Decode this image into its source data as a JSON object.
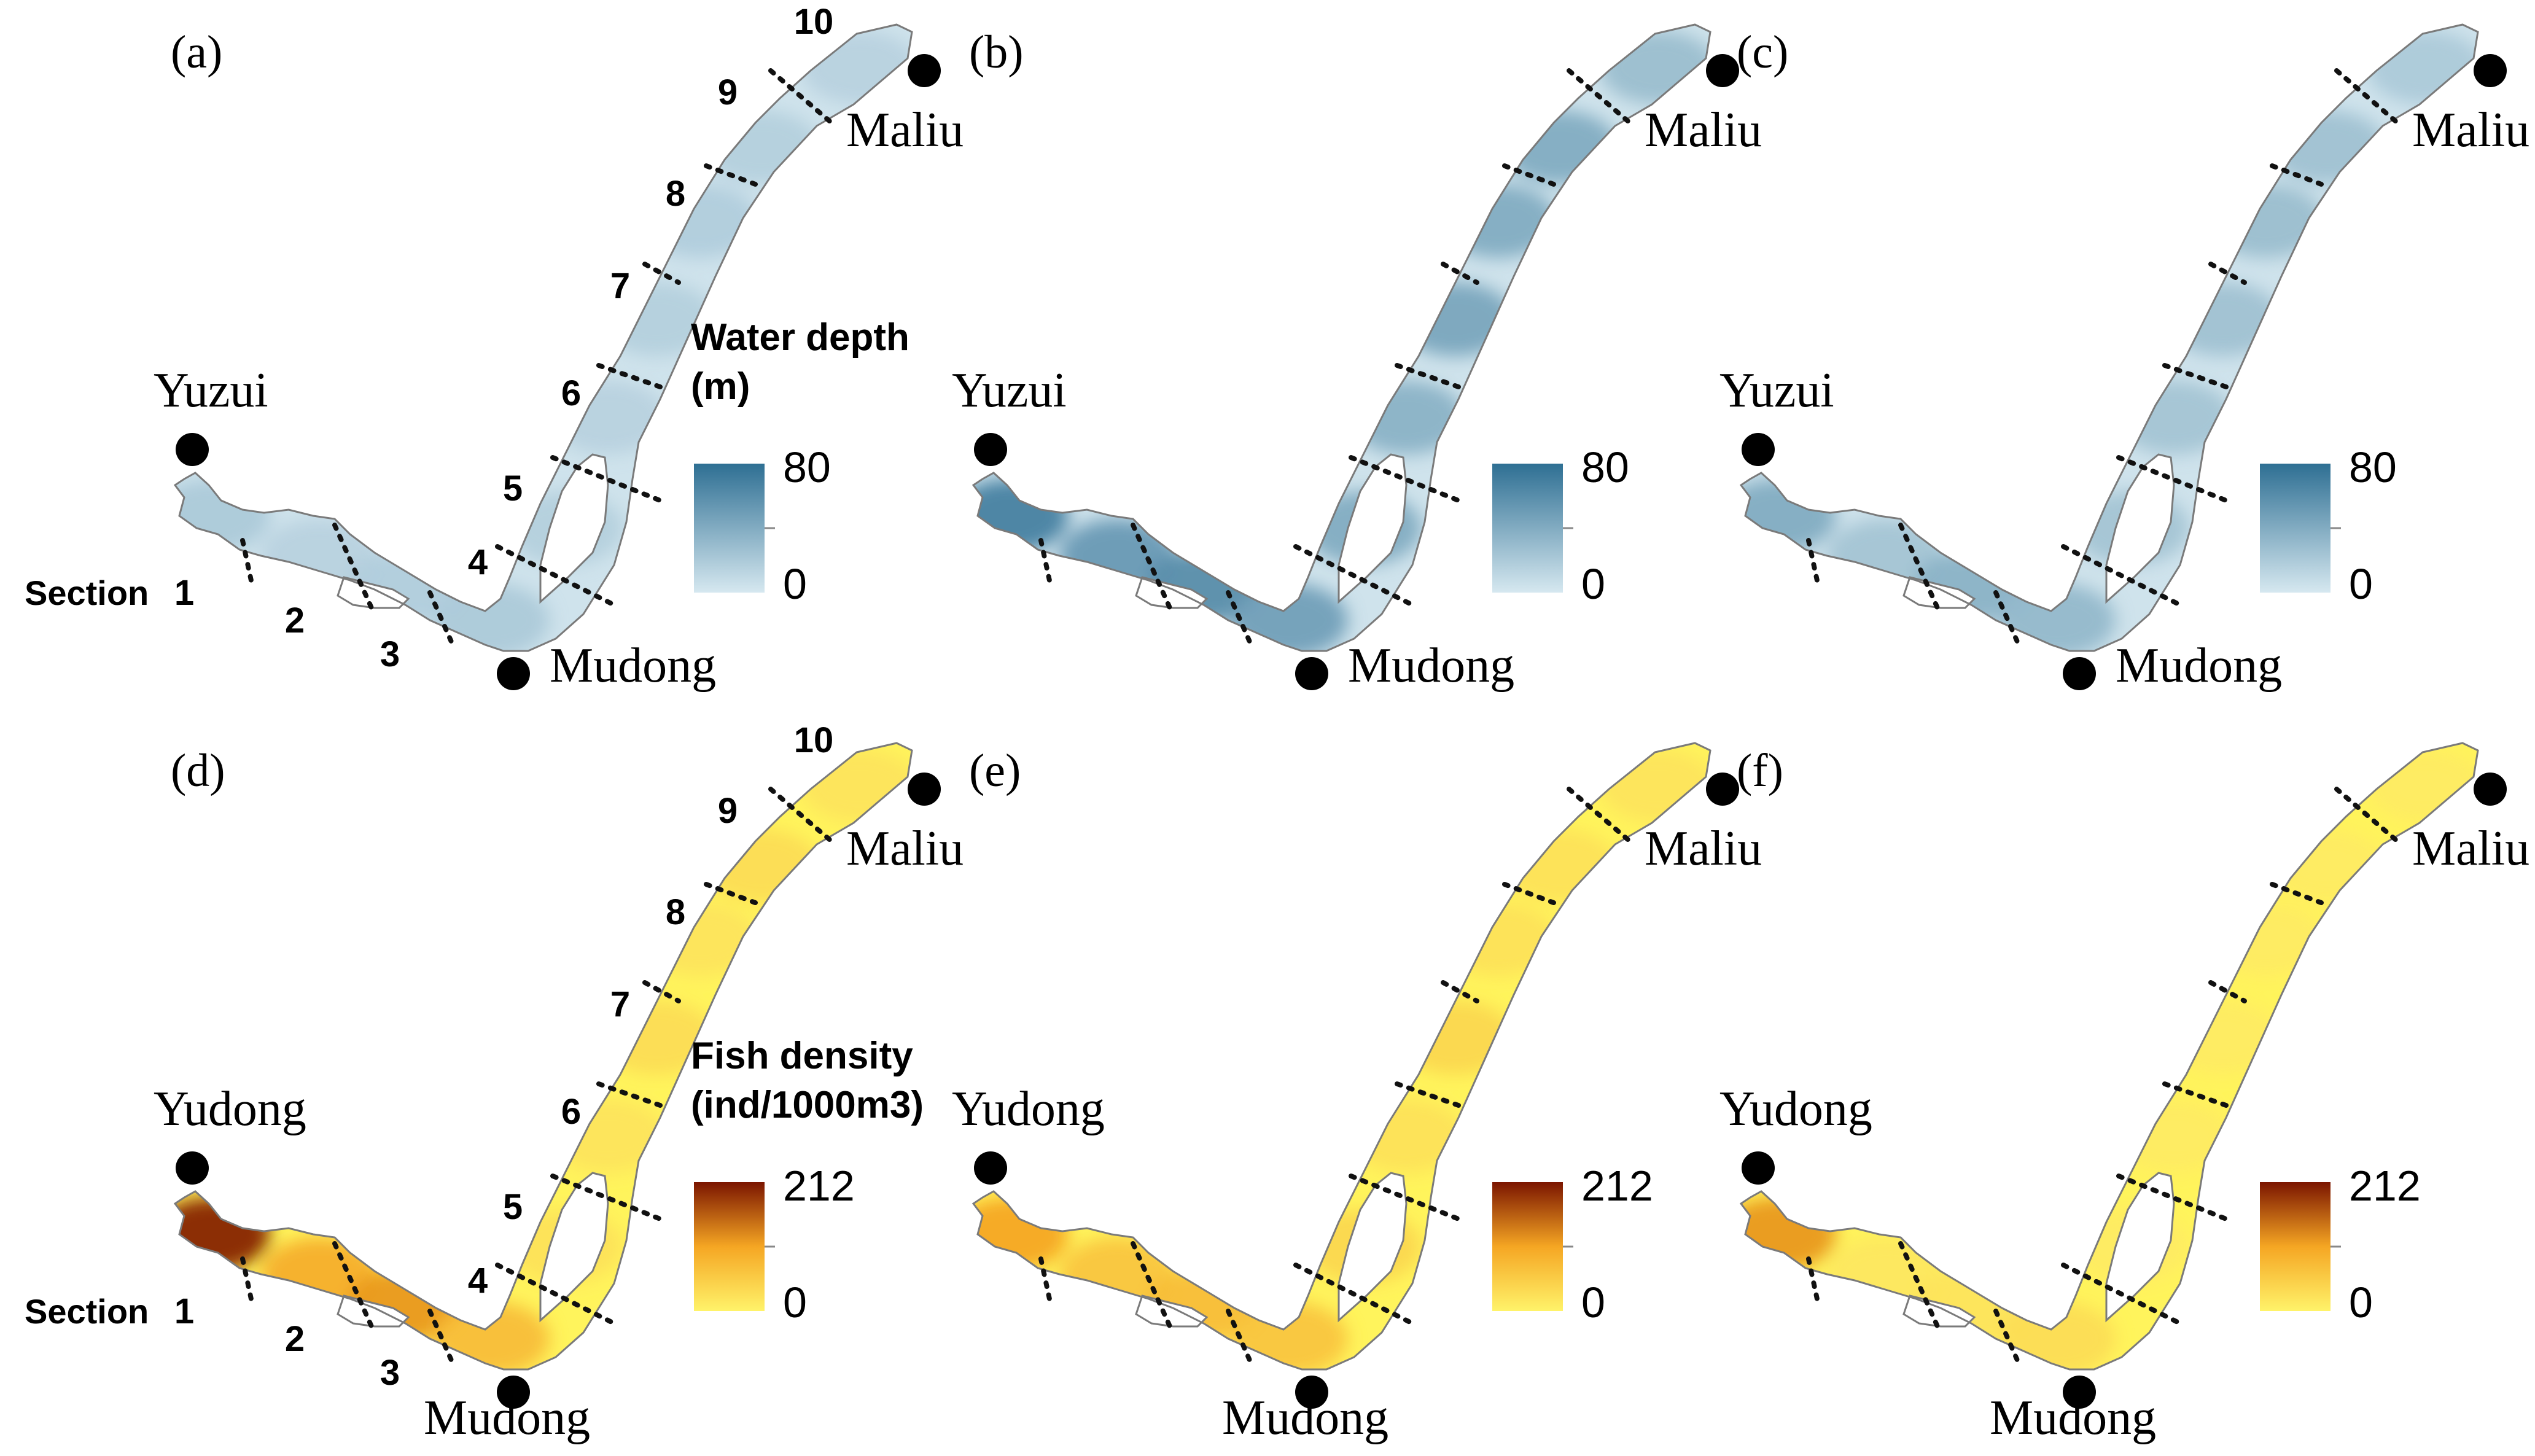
{
  "panels": [
    {
      "label": "(a)",
      "top_place": "Yuzui",
      "layer": "depth",
      "intensity": [
        0.25,
        0.18,
        0.22,
        0.25,
        0.2,
        0.18,
        0.2,
        0.22,
        0.2,
        0.18
      ],
      "show_sections": true,
      "show_legend_title": true
    },
    {
      "label": "(b)",
      "top_place": "Yuzui",
      "layer": "depth",
      "intensity": [
        0.85,
        0.65,
        0.75,
        0.6,
        0.5,
        0.45,
        0.55,
        0.5,
        0.5,
        0.35
      ],
      "show_sections": false,
      "show_legend_title": false
    },
    {
      "label": "(c)",
      "top_place": "Yuzui",
      "layer": "depth",
      "intensity": [
        0.5,
        0.3,
        0.45,
        0.4,
        0.3,
        0.3,
        0.32,
        0.35,
        0.32,
        0.25
      ],
      "show_sections": false,
      "show_legend_title": false
    },
    {
      "label": "(d)",
      "top_place": "Yudong",
      "layer": "fish",
      "intensity": [
        0.95,
        0.45,
        0.55,
        0.35,
        0.12,
        0.1,
        0.15,
        0.1,
        0.15,
        0.1
      ],
      "show_sections": true,
      "show_legend_title": true
    },
    {
      "label": "(e)",
      "top_place": "Yudong",
      "layer": "fish",
      "intensity": [
        0.5,
        0.3,
        0.35,
        0.3,
        0.18,
        0.12,
        0.18,
        0.12,
        0.12,
        0.1
      ],
      "show_sections": false,
      "show_legend_title": false
    },
    {
      "label": "(f)",
      "top_place": "Yudong",
      "layer": "fish",
      "intensity": [
        0.55,
        0.08,
        0.1,
        0.15,
        0.05,
        0.05,
        0.05,
        0.05,
        0.05,
        0.05
      ],
      "show_sections": false,
      "show_legend_title": false
    }
  ],
  "places": {
    "maliu": "Maliu",
    "mudong": "Mudong"
  },
  "section_word": "Section",
  "section_numbers": [
    "1",
    "2",
    "3",
    "4",
    "5",
    "6",
    "7",
    "8",
    "9",
    "10"
  ],
  "legends": {
    "depth": {
      "title_line1": "Water depth",
      "title_line2": "(m)",
      "max": "80",
      "min": "0",
      "color_low": "#d6e8f0",
      "color_high": "#2e6f93"
    },
    "fish": {
      "title_line1": "Fish density",
      "title_line2": "(ind/1000m3)",
      "max": "212",
      "min": "0",
      "color_low": "#fff36a",
      "color_mid": "#f5a623",
      "color_high": "#7b1500"
    }
  },
  "colors": {
    "water_depth_base": "#cfe3ec",
    "fish_base": "#fff45c",
    "outline": "#7a7a7a",
    "station": "#000000",
    "cut": "#111111"
  }
}
